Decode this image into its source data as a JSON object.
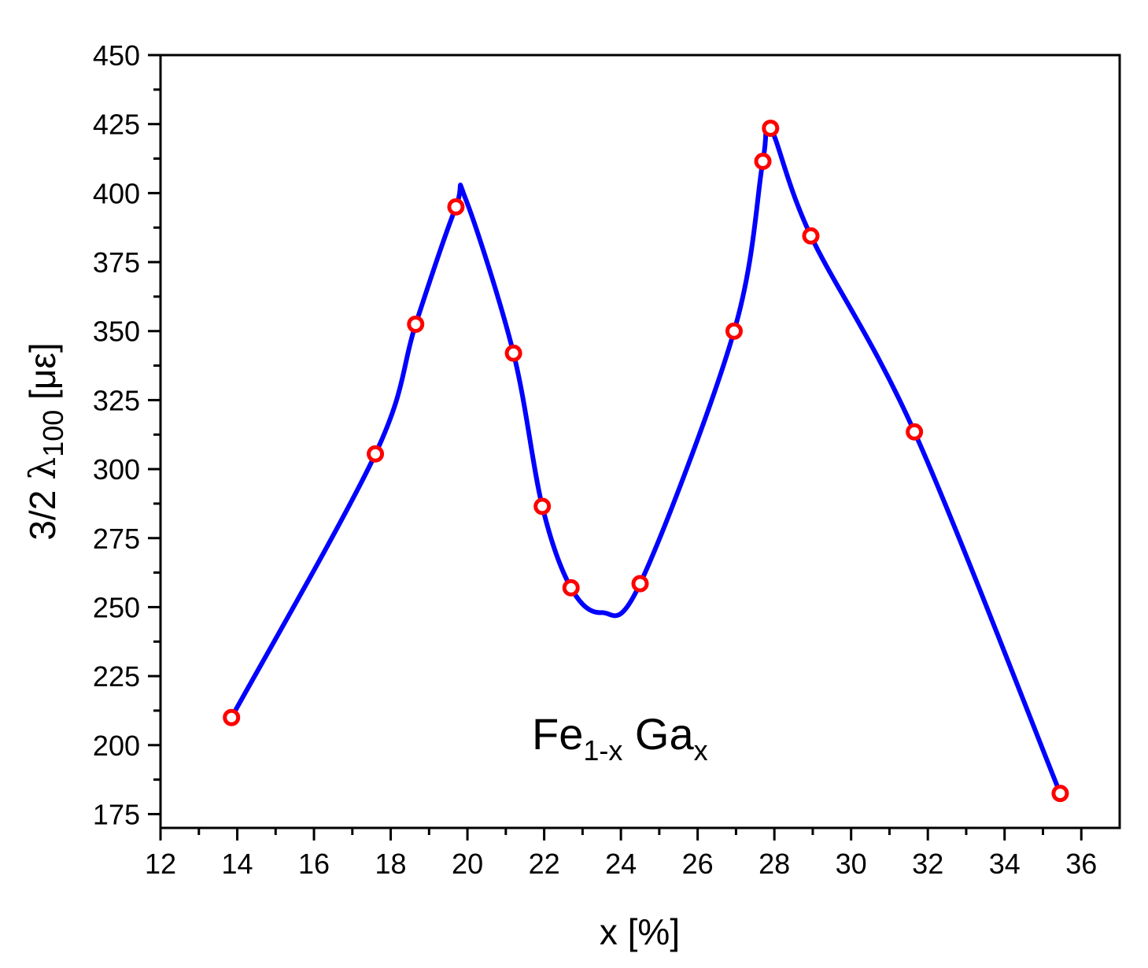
{
  "chart_data": {
    "type": "scatter",
    "xlabel": "x [%]",
    "ylabel": {
      "prefix": "3/2 ",
      "symbol": "λ",
      "subscript": "100",
      "suffix": " [με]"
    },
    "xlim": [
      12,
      37
    ],
    "ylim": [
      170,
      450
    ],
    "xticks": [
      12,
      14,
      16,
      18,
      20,
      22,
      24,
      26,
      28,
      30,
      32,
      34,
      36
    ],
    "yticks": [
      175,
      200,
      225,
      250,
      275,
      300,
      325,
      350,
      375,
      400,
      425,
      450
    ],
    "grid": false,
    "annotation": {
      "base1": "Fe",
      "sub1": "1-x",
      "base2": " Ga",
      "sub2": "x"
    },
    "series": [
      {
        "style": "points",
        "marker": "open-circle",
        "color": "#ff0000",
        "x": [
          13.85,
          17.6,
          18.65,
          19.7,
          21.2,
          21.95,
          22.7,
          24.5,
          26.95,
          27.7,
          27.9,
          28.95,
          31.65,
          35.45
        ],
        "y": [
          210,
          305.5,
          352.5,
          395,
          342,
          286.5,
          257,
          258.5,
          350,
          411.5,
          423.5,
          384.5,
          313.5,
          182.5
        ]
      },
      {
        "style": "smooth-line",
        "color": "#0000ff",
        "x": [
          13.85,
          17.6,
          18.65,
          19.7,
          19.95,
          21.2,
          21.95,
          22.7,
          23.5,
          24.5,
          26.95,
          27.7,
          27.9,
          28.95,
          31.65,
          35.45
        ],
        "y": [
          210,
          305.5,
          352.5,
          395,
          398,
          342,
          286.5,
          257,
          248,
          258.5,
          350,
          411.5,
          423.5,
          384.5,
          313.5,
          182.5
        ]
      }
    ]
  }
}
